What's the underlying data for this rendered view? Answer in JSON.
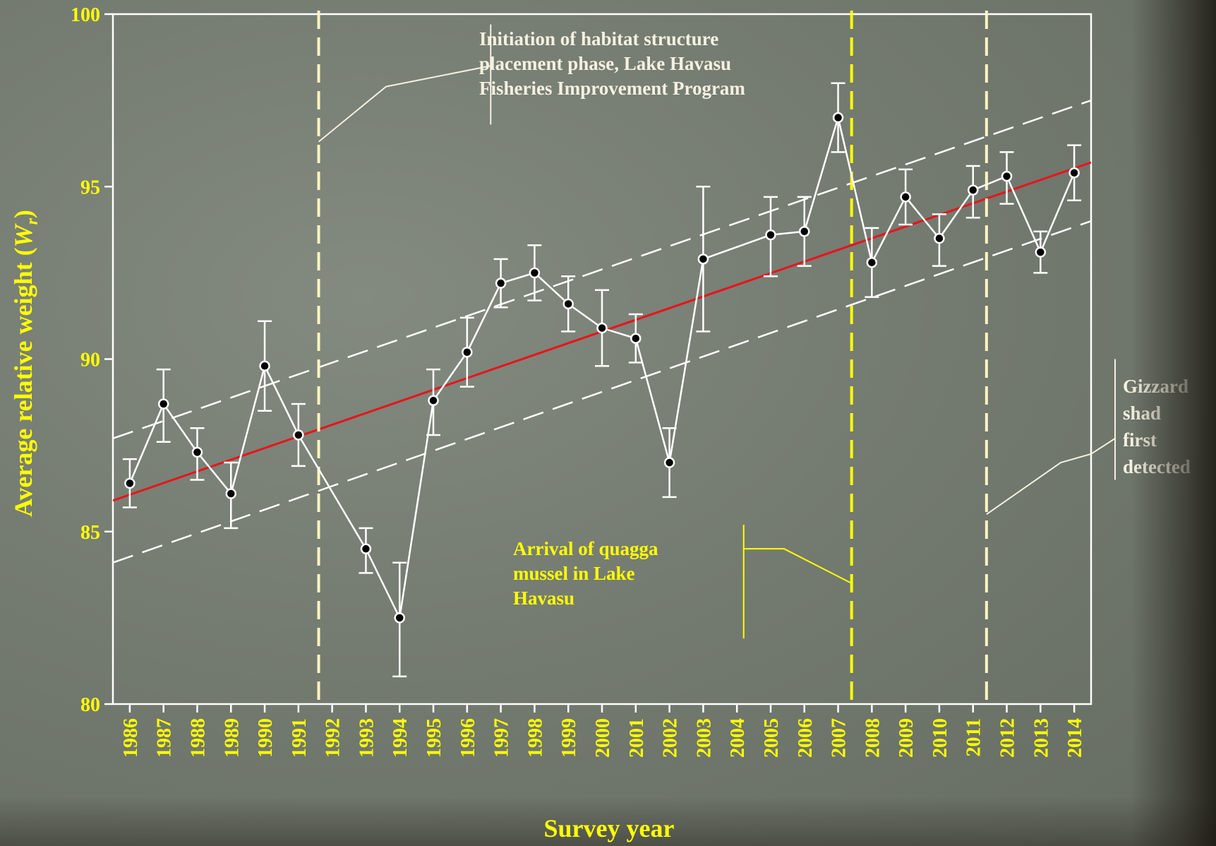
{
  "chart_data": {
    "type": "line",
    "xlabel": "Survey year",
    "ylabel": "Average relative weight",
    "ylabel_symbol": "W",
    "ylabel_subscript": "r",
    "ylim": [
      80,
      100
    ],
    "yticks": [
      80,
      85,
      90,
      95,
      100
    ],
    "xticks": [
      "1986",
      "1987",
      "1988",
      "1989",
      "1990",
      "1991",
      "1992",
      "1993",
      "1994",
      "1995",
      "1996",
      "1997",
      "1998",
      "1999",
      "2000",
      "2001",
      "2002",
      "2003",
      "2004",
      "2005",
      "2006",
      "2007",
      "2008",
      "2009",
      "2010",
      "2011",
      "2012",
      "2013",
      "2014"
    ],
    "series": [
      {
        "x": [
          1986,
          1987,
          1988,
          1989,
          1990,
          1991,
          1993,
          1994,
          1995,
          1996,
          1997,
          1998,
          1999,
          2000,
          2001,
          2002,
          2003,
          2005,
          2006,
          2007,
          2008,
          2009,
          2010,
          2011,
          2012,
          2013,
          2014
        ],
        "values": [
          86.4,
          88.7,
          87.3,
          86.1,
          89.8,
          87.8,
          84.5,
          82.5,
          88.8,
          90.2,
          92.2,
          92.5,
          91.6,
          90.9,
          90.6,
          87.0,
          92.9,
          93.6,
          93.7,
          97.0,
          92.8,
          94.7,
          93.5,
          94.9,
          95.3,
          93.1,
          95.4
        ],
        "error_low": [
          85.7,
          87.6,
          86.5,
          85.1,
          88.5,
          86.9,
          83.8,
          80.8,
          87.8,
          89.2,
          91.5,
          91.7,
          90.8,
          89.8,
          89.9,
          86.0,
          90.8,
          92.4,
          92.7,
          96.0,
          91.8,
          93.9,
          92.7,
          94.1,
          94.5,
          92.5,
          94.6
        ],
        "error_high": [
          87.1,
          89.7,
          88.0,
          87.0,
          91.1,
          88.7,
          85.1,
          84.1,
          89.7,
          91.2,
          92.9,
          93.3,
          92.4,
          92.0,
          91.3,
          88.0,
          95.0,
          94.7,
          94.7,
          98.0,
          93.8,
          95.5,
          94.2,
          95.6,
          96.0,
          93.7,
          96.2
        ],
        "color": "#ffffff"
      }
    ],
    "trend": {
      "x": [
        1985.5,
        2014.5
      ],
      "y": [
        85.9,
        95.7
      ],
      "color": "#e8141a"
    },
    "confidence_upper": {
      "x": [
        1985.5,
        2014.5
      ],
      "y": [
        87.7,
        97.5
      ]
    },
    "confidence_lower": {
      "x": [
        1985.5,
        2014.5
      ],
      "y": [
        84.1,
        94.0
      ]
    },
    "vlines": [
      {
        "x": 1991.6,
        "color": "#fff4c0"
      },
      {
        "x": 2007.4,
        "color": "#ffff00"
      },
      {
        "x": 2011.4,
        "color": "#fff4c0"
      }
    ],
    "annotations": {
      "habitat": "Initiation of habitat structure placement phase, Lake Havasu Fisheries Improvement Program",
      "habitat_lines": [
        "Initiation of habitat structure",
        "placement phase, Lake Havasu",
        "Fisheries Improvement Program"
      ],
      "quagga_lines": [
        "Arrival of quagga",
        "mussel in Lake",
        "Havasu"
      ],
      "gizzard_lines": [
        "Gizzard",
        "shad",
        "first",
        "detected"
      ]
    },
    "colors": {
      "axes": "#ffffff",
      "tick_labels": "#ffff00",
      "data_line": "#ffffff",
      "marker_fill": "#000000",
      "trend": "#e8141a",
      "annotation_white": "#f5f0e0",
      "annotation_yellow": "#ffff00"
    }
  }
}
